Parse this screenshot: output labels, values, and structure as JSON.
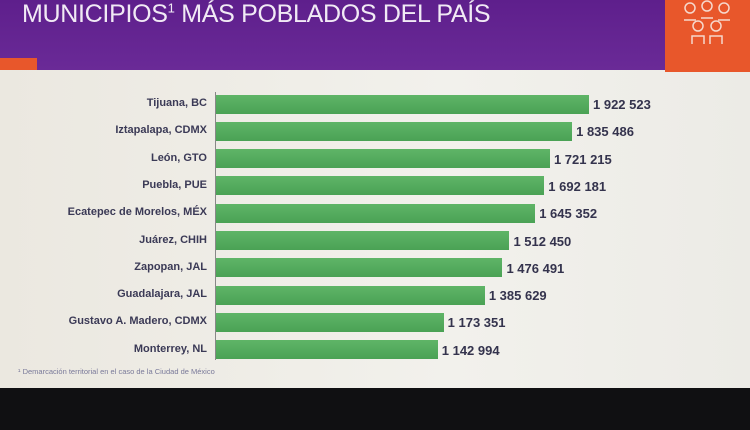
{
  "header": {
    "title": "MUNICIPIOS",
    "title_sup": "1",
    "title_rest": " MÁS POBLADOS DEL PAÍS"
  },
  "colors": {
    "header": "#5e1f8c",
    "accent": "#e8572b",
    "bar": "#4fa85a"
  },
  "icons": [
    "people-group-icon"
  ],
  "footnote": "¹ Demarcación territorial en el caso de la Ciudad de México",
  "chart_data": {
    "type": "bar",
    "orientation": "horizontal",
    "categories": [
      "Tijuana, BC",
      "Iztapalapa, CDMX",
      "León, GTO",
      "Puebla, PUE",
      "Ecatepec de Morelos, MÉX",
      "Juárez, CHIH",
      "Zapopan, JAL",
      "Guadalajara, JAL",
      "Gustavo A. Madero, CDMX",
      "Monterrey, NL"
    ],
    "values": [
      1922523,
      1835486,
      1721215,
      1692181,
      1645352,
      1512450,
      1476491,
      1385629,
      1173351,
      1142994
    ],
    "data_labels": [
      "1 922 523",
      "1 835 486",
      "1 721 215",
      "1 692 181",
      "1 645 352",
      "1 512 450",
      "1 476 491",
      "1 385 629",
      "1 173 351",
      "1 142 994"
    ],
    "grid": false
  }
}
